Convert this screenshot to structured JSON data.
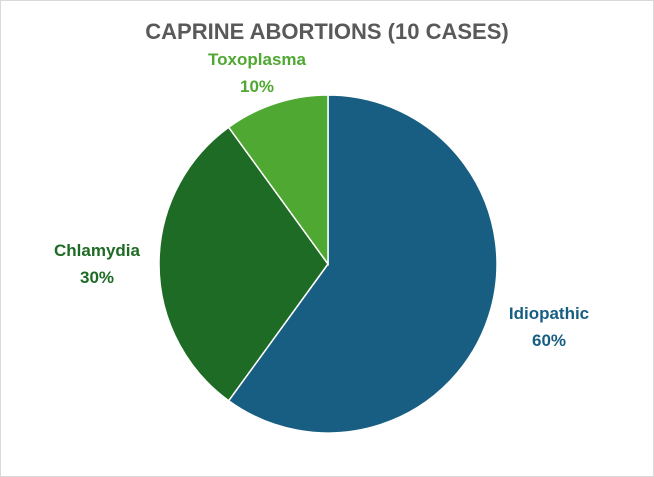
{
  "chart_data": {
    "type": "pie",
    "title": "CAPRINE ABORTIONS (10 CASES)",
    "slices": [
      {
        "name": "Idiopathic",
        "value": 60,
        "label": "60%",
        "color": "#175e82"
      },
      {
        "name": "Chlamydia",
        "value": 30,
        "label": "30%",
        "color": "#1e6b25"
      },
      {
        "name": "Toxoplasma",
        "value": 10,
        "label": "10%",
        "color": "#4fa832"
      }
    ]
  }
}
